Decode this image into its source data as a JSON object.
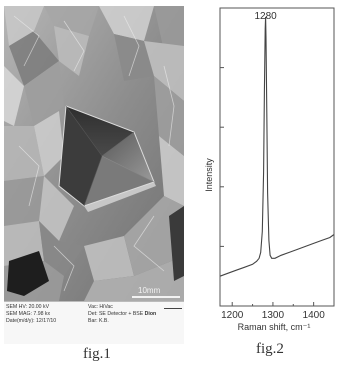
{
  "figure1": {
    "caption": "fig.1",
    "scale_bar": "10mm",
    "info": {
      "hv": "SEM HV: 20.00 kV",
      "mag": "SEM MAG: 7.98 kx",
      "date": "Date(m/d/y): 12/17/10",
      "vac": "Vac: HiVac",
      "det": "Det: SE Detector + BSE",
      "det_extra": "Dion",
      "bar": "Bar: K.B."
    }
  },
  "figure2": {
    "caption": "fig.2",
    "peak_label": "1280"
  },
  "chart_data": {
    "type": "line",
    "title": "",
    "xlabel": "Raman shift, cm⁻¹",
    "ylabel": "Intensity",
    "xlim": [
      1170,
      1450
    ],
    "ylim": [
      0,
      1
    ],
    "x_ticks": [
      1200,
      1300,
      1400
    ],
    "y_ticks_visible": false,
    "annotation": {
      "text": "1280",
      "x": 1282
    },
    "series": [
      {
        "x": [
          1170,
          1190,
          1210,
          1230,
          1250,
          1260,
          1266,
          1270,
          1274,
          1277,
          1279,
          1281,
          1282,
          1283,
          1285,
          1287,
          1290,
          1293,
          1297,
          1305,
          1320,
          1340,
          1360,
          1380,
          1400,
          1420,
          1440,
          1450
        ],
        "values": [
          0.1,
          0.11,
          0.12,
          0.13,
          0.14,
          0.15,
          0.16,
          0.18,
          0.25,
          0.45,
          0.72,
          0.93,
          0.97,
          0.9,
          0.65,
          0.38,
          0.22,
          0.17,
          0.16,
          0.16,
          0.17,
          0.18,
          0.19,
          0.2,
          0.21,
          0.22,
          0.23,
          0.24
        ]
      }
    ]
  }
}
